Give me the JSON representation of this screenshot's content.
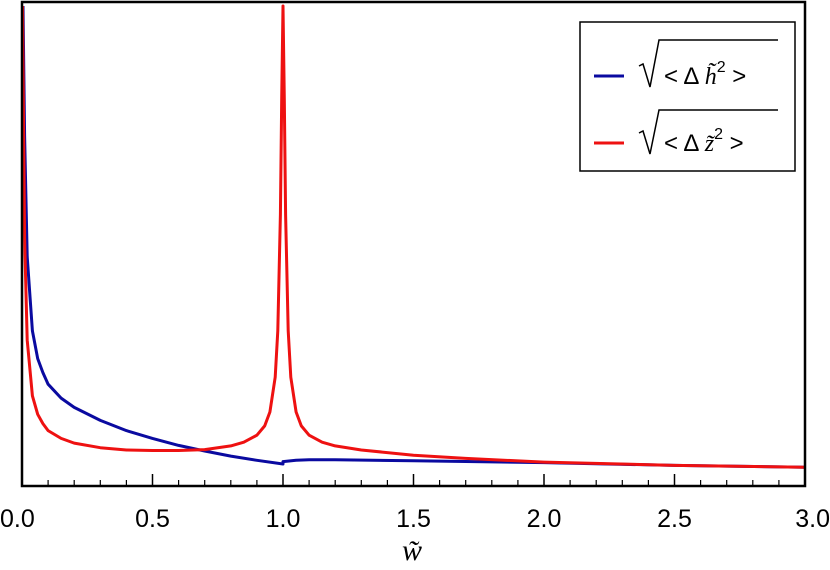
{
  "chart_data": {
    "type": "line",
    "xlabel": "w̃",
    "x_ticks": [
      "0.0",
      "0.5",
      "1.0",
      "1.5",
      "2.0",
      "2.5",
      "3.0"
    ],
    "xlim": [
      0,
      3
    ],
    "ylim": [
      0,
      1
    ],
    "y_ticks_shown": false,
    "grid": false,
    "legend_position": "top-right",
    "series": [
      {
        "name": "sqrt(<Δ h̃²>)",
        "legend": {
          "pre": "< Δ ",
          "var": "h̃",
          "post": " >"
        },
        "color": "#0a0aa0",
        "x": [
          0.004,
          0.01,
          0.02,
          0.04,
          0.06,
          0.08,
          0.1,
          0.15,
          0.2,
          0.3,
          0.4,
          0.5,
          0.6,
          0.7,
          0.8,
          0.9,
          1.0,
          1.0001,
          1.05,
          1.1,
          1.2,
          1.5,
          2.0,
          2.5,
          3.0
        ],
        "y": [
          1.0,
          0.72,
          0.46,
          0.3,
          0.24,
          0.21,
          0.185,
          0.155,
          0.135,
          0.107,
          0.085,
          0.068,
          0.053,
          0.041,
          0.03,
          0.021,
          0.013,
          0.018,
          0.021,
          0.022,
          0.022,
          0.02,
          0.016,
          0.01,
          0.006
        ]
      },
      {
        "name": "sqrt(<Δ z̃²>)",
        "legend": {
          "pre": "< Δ ",
          "var": "z̃",
          "post": " >"
        },
        "color": "#ee1111",
        "x": [
          0.002,
          0.005,
          0.01,
          0.02,
          0.04,
          0.06,
          0.08,
          0.1,
          0.15,
          0.2,
          0.3,
          0.4,
          0.5,
          0.6,
          0.7,
          0.8,
          0.85,
          0.9,
          0.93,
          0.95,
          0.97,
          0.98,
          0.99,
          0.995,
          1.0,
          1.005,
          1.01,
          1.02,
          1.03,
          1.05,
          1.07,
          1.1,
          1.15,
          1.2,
          1.3,
          1.5,
          1.7,
          2.0,
          2.5,
          3.0
        ],
        "y": [
          1.0,
          0.8,
          0.5,
          0.28,
          0.16,
          0.12,
          0.1,
          0.085,
          0.068,
          0.058,
          0.048,
          0.043,
          0.042,
          0.042,
          0.044,
          0.052,
          0.06,
          0.075,
          0.095,
          0.125,
          0.2,
          0.3,
          0.55,
          0.8,
          1.0,
          0.8,
          0.55,
          0.3,
          0.2,
          0.125,
          0.095,
          0.075,
          0.06,
          0.052,
          0.043,
          0.032,
          0.025,
          0.017,
          0.01,
          0.006
        ]
      }
    ]
  }
}
